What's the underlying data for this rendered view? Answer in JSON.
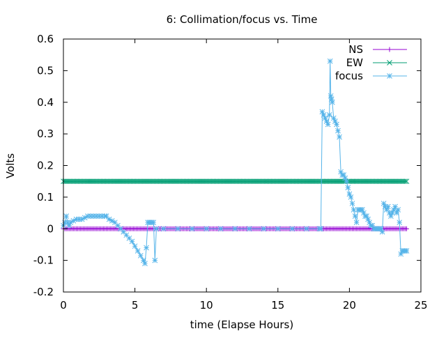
{
  "chart_data": {
    "type": "line",
    "title": "6: Collimation/focus vs. Time",
    "xlabel": "time (Elapse Hours)",
    "ylabel": "Volts",
    "xlim": [
      0,
      25
    ],
    "ylim": [
      -0.2,
      0.6
    ],
    "xticks": [
      0,
      5,
      10,
      15,
      20,
      25
    ],
    "yticks": [
      -0.2,
      -0.1,
      0,
      0.1,
      0.2,
      0.3,
      0.4,
      0.5,
      0.6
    ],
    "xtick_labels": [
      "0",
      "5",
      "10",
      "15",
      "20",
      "25"
    ],
    "ytick_labels": [
      "-0.2",
      "-0.1",
      "0",
      "0.1",
      "0.2",
      "0.3",
      "0.4",
      "0.5",
      "0.6"
    ],
    "grid": false,
    "legend_position": "top-right",
    "series": [
      {
        "name": "NS",
        "color": "#9400d3",
        "marker": "plus",
        "x": [
          0,
          24
        ],
        "y": [
          0,
          0
        ],
        "sample_interval": 0.1
      },
      {
        "name": "EW",
        "color": "#009e73",
        "marker": "cross",
        "x": [
          0,
          24
        ],
        "y": [
          0.15,
          0.15
        ],
        "sample_interval": 0.1
      },
      {
        "name": "focus",
        "color": "#56b4e9",
        "marker": "star",
        "x": [
          0.0,
          0.1,
          0.2,
          0.3,
          0.4,
          0.5,
          0.7,
          0.9,
          1.1,
          1.3,
          1.5,
          1.7,
          1.9,
          2.1,
          2.3,
          2.5,
          2.7,
          2.9,
          3.0,
          3.2,
          3.4,
          3.6,
          3.8,
          4.0,
          4.2,
          4.4,
          4.6,
          4.8,
          5.0,
          5.2,
          5.4,
          5.6,
          5.7,
          5.8,
          5.9,
          6.0,
          6.1,
          6.2,
          6.3,
          6.4,
          6.5,
          7.0,
          8.0,
          9.0,
          10.0,
          11.0,
          12.0,
          13.0,
          14.0,
          15.0,
          16.0,
          17.0,
          17.9,
          18.0,
          18.1,
          18.2,
          18.3,
          18.4,
          18.5,
          18.6,
          18.65,
          18.7,
          18.75,
          18.8,
          18.9,
          19.0,
          19.1,
          19.2,
          19.3,
          19.4,
          19.5,
          19.6,
          19.7,
          19.8,
          19.9,
          20.0,
          20.1,
          20.2,
          20.3,
          20.4,
          20.5,
          20.6,
          20.7,
          20.8,
          20.9,
          21.0,
          21.1,
          21.2,
          21.3,
          21.4,
          21.5,
          21.6,
          21.7,
          21.8,
          21.9,
          22.0,
          22.1,
          22.2,
          22.3,
          22.4,
          22.5,
          22.6,
          22.7,
          22.8,
          22.9,
          23.0,
          23.1,
          23.2,
          23.3,
          23.4,
          23.5,
          23.6,
          23.7,
          23.8,
          23.9,
          24.0
        ],
        "y": [
          0.01,
          0.02,
          0.04,
          0.02,
          0.01,
          0.02,
          0.025,
          0.03,
          0.03,
          0.03,
          0.035,
          0.04,
          0.04,
          0.04,
          0.04,
          0.04,
          0.04,
          0.04,
          0.04,
          0.03,
          0.025,
          0.02,
          0.01,
          0.0,
          -0.01,
          -0.02,
          -0.03,
          -0.04,
          -0.055,
          -0.07,
          -0.085,
          -0.1,
          -0.11,
          -0.06,
          0.02,
          0.02,
          0.02,
          0.02,
          0.02,
          -0.1,
          0.0,
          0.0,
          0.0,
          0.0,
          0.0,
          0.0,
          0.0,
          0.0,
          0.0,
          0.0,
          0.0,
          0.0,
          0.0,
          0.0,
          0.37,
          0.36,
          0.35,
          0.34,
          0.33,
          0.36,
          0.53,
          0.42,
          0.41,
          0.4,
          0.35,
          0.34,
          0.33,
          0.31,
          0.29,
          0.18,
          0.17,
          0.17,
          0.16,
          0.15,
          0.13,
          0.11,
          0.1,
          0.08,
          0.06,
          0.04,
          0.02,
          0.06,
          0.06,
          0.06,
          0.06,
          0.05,
          0.04,
          0.04,
          0.03,
          0.02,
          0.01,
          0.01,
          0.0,
          0.0,
          0.0,
          0.0,
          0.0,
          0.0,
          -0.01,
          0.08,
          0.07,
          0.06,
          0.07,
          0.05,
          0.04,
          0.05,
          0.06,
          0.07,
          0.05,
          0.06,
          0.02,
          -0.08,
          -0.07,
          -0.07,
          -0.07,
          -0.07
        ]
      }
    ]
  }
}
